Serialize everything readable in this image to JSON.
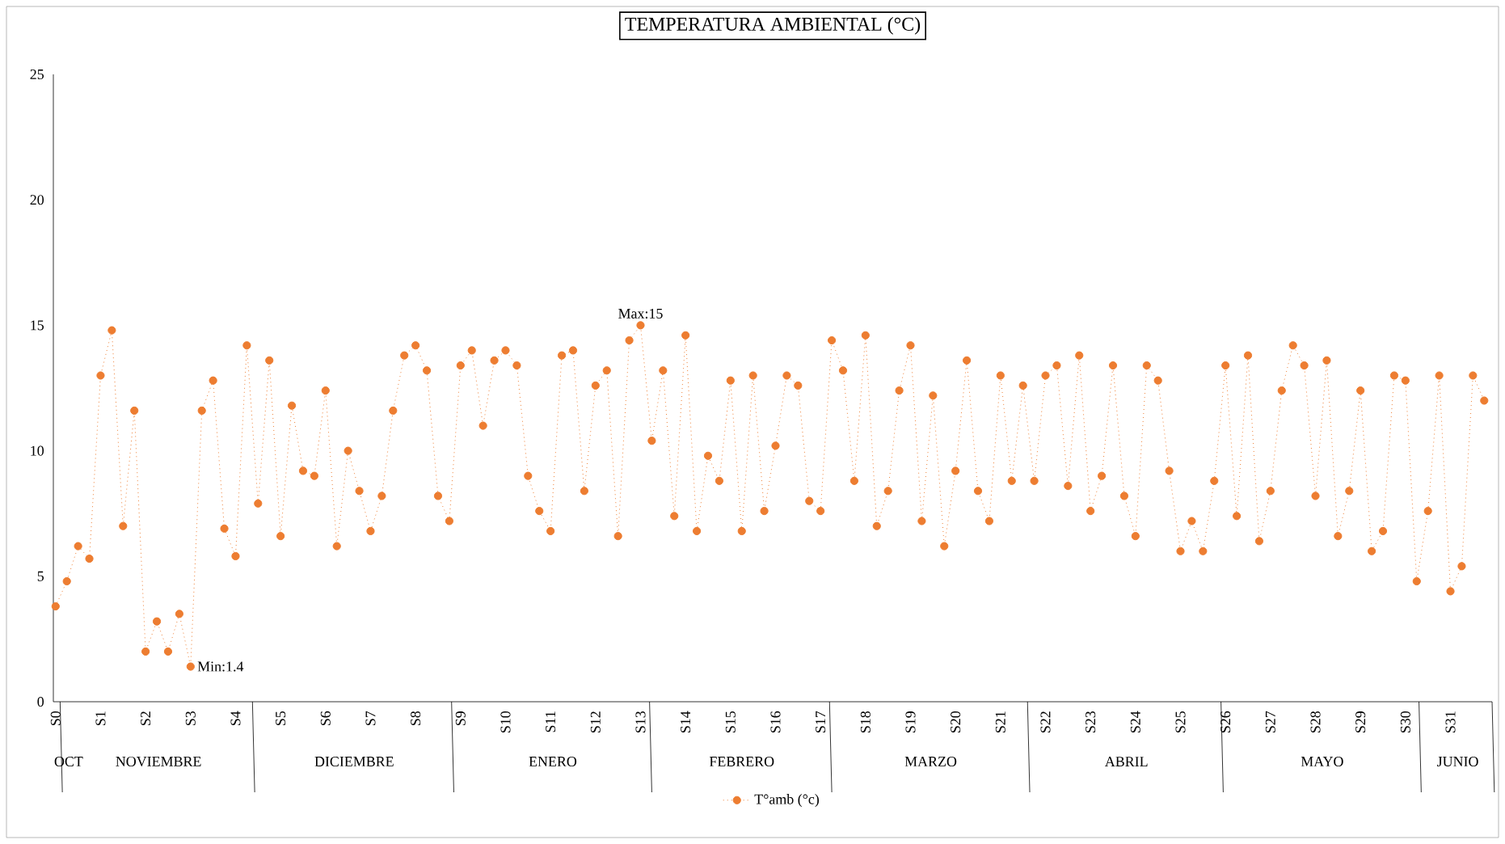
{
  "chart_data": {
    "type": "line",
    "title": "TEMPERATURA AMBIENTAL (°C)",
    "categories": [
      "S0",
      null,
      null,
      null,
      "S1",
      null,
      null,
      null,
      "S2",
      null,
      null,
      null,
      "S3",
      null,
      null,
      null,
      "S4",
      null,
      null,
      null,
      "S5",
      null,
      null,
      null,
      "S6",
      null,
      null,
      null,
      "S7",
      null,
      null,
      null,
      "S8",
      null,
      null,
      null,
      "S9",
      null,
      null,
      null,
      "S10",
      null,
      null,
      null,
      "S11",
      null,
      null,
      null,
      "S12",
      null,
      null,
      null,
      "S13",
      null,
      null,
      null,
      "S14",
      null,
      null,
      null,
      "S15",
      null,
      null,
      null,
      "S16",
      null,
      null,
      null,
      "S17",
      null,
      null,
      null,
      "S18",
      null,
      null,
      null,
      "S19",
      null,
      null,
      null,
      "S20",
      null,
      null,
      null,
      "S21",
      null,
      null,
      null,
      "S22",
      null,
      null,
      null,
      "S23",
      null,
      null,
      null,
      "S24",
      null,
      null,
      null,
      "S25",
      null,
      null,
      null,
      "S26",
      null,
      null,
      null,
      "S27",
      null,
      null,
      null,
      "S28",
      null,
      null,
      null,
      "S29",
      null,
      null,
      null,
      "S30",
      null,
      null,
      null,
      "S31",
      null,
      null,
      null
    ],
    "series": [
      {
        "name": "T°amb (°c)",
        "color": "#ed7d31",
        "values": [
          3.8,
          4.8,
          6.2,
          5.7,
          13.0,
          14.8,
          7.0,
          11.6,
          2.0,
          3.2,
          2.0,
          3.5,
          1.4,
          11.6,
          12.8,
          6.9,
          5.8,
          14.2,
          7.9,
          13.6,
          6.6,
          11.8,
          9.2,
          9.0,
          12.4,
          6.2,
          10.0,
          8.4,
          6.8,
          8.2,
          11.6,
          13.8,
          14.2,
          13.2,
          8.2,
          7.2,
          13.4,
          14.0,
          11.0,
          13.6,
          14.0,
          13.4,
          9.0,
          7.6,
          6.8,
          13.8,
          14.0,
          8.4,
          12.6,
          13.2,
          6.6,
          14.4,
          15.0,
          10.4,
          13.2,
          7.4,
          14.6,
          6.8,
          9.8,
          8.8,
          12.8,
          6.8,
          13.0,
          7.6,
          10.2,
          13.0,
          12.6,
          8.0,
          7.6,
          14.4,
          13.2,
          8.8,
          14.6,
          7.0,
          8.4,
          12.4,
          14.2,
          7.2,
          12.2,
          6.2,
          9.2,
          13.6,
          8.4,
          7.2,
          13.0,
          8.8,
          12.6,
          8.8,
          13.0,
          13.4,
          8.6,
          13.8,
          7.6,
          9.0,
          13.4,
          8.2,
          6.6,
          13.4,
          12.8,
          9.2,
          6.0,
          7.2,
          6.0,
          8.8,
          13.4,
          7.4,
          13.8,
          6.4,
          8.4,
          12.4,
          14.2,
          13.4,
          8.2,
          13.6,
          6.6,
          8.4,
          12.4,
          6.0,
          6.8,
          13.0,
          12.8,
          4.8,
          7.6,
          13.0,
          4.4,
          5.4,
          13.0,
          12.0
        ]
      }
    ],
    "ylim": [
      0,
      25
    ],
    "yticks": [
      0,
      5,
      10,
      15,
      20,
      25
    ],
    "annotations": [
      "OCT",
      "NOVIEMBRE",
      "DICIEMBRE",
      "ENERO",
      "FEBRERO",
      "MARZO",
      "ABRIL",
      "MAYO",
      "JUNIO",
      {
        "text": "Max:15",
        "x": "S13",
        "y": 15
      },
      {
        "text": "Min:1.4",
        "x": "S3",
        "y": 1.4
      }
    ],
    "marker": "circle",
    "line_style": "dotted",
    "grid": false,
    "legend": "bottom"
  }
}
